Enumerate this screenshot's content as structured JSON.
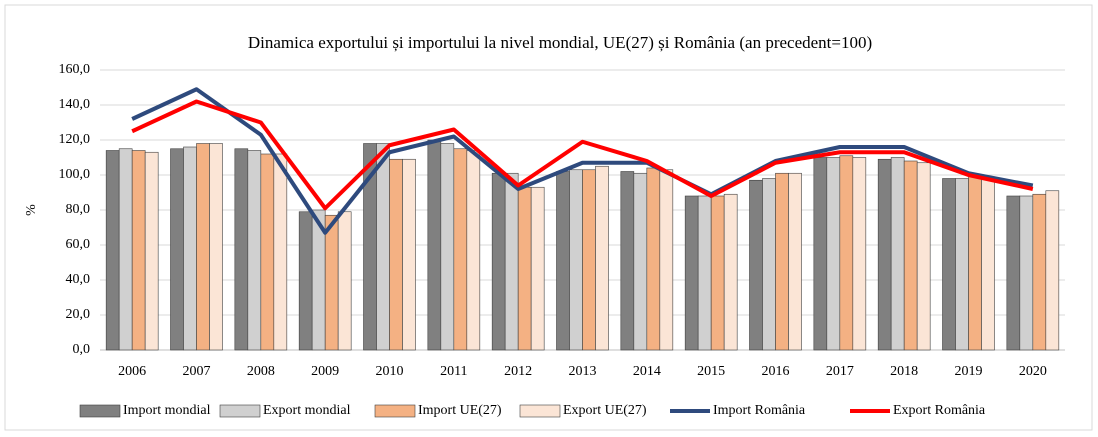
{
  "chart_data": {
    "type": "bar",
    "title": "Dinamica exportului și importului la nivel mondial, UE(27) și România (an precedent=100)",
    "y_label": "%",
    "categories": [
      "2006",
      "2007",
      "2008",
      "2009",
      "2010",
      "2011",
      "2012",
      "2013",
      "2014",
      "2015",
      "2016",
      "2017",
      "2018",
      "2019",
      "2020"
    ],
    "series": [
      {
        "name": "Import mondial",
        "kind": "bar",
        "color": "#808080",
        "values": [
          114,
          115,
          115,
          79,
          118,
          120,
          101,
          102,
          102,
          88,
          97,
          110,
          109,
          98,
          88
        ]
      },
      {
        "name": "Export mondial",
        "kind": "bar",
        "color": "#d0d0d0",
        "values": [
          115,
          116,
          114,
          80,
          118,
          118,
          101,
          103,
          101,
          88,
          98,
          110,
          110,
          98,
          88
        ]
      },
      {
        "name": "Import UE(27)",
        "kind": "bar",
        "color": "#f4b183",
        "values": [
          114,
          118,
          112,
          77,
          109,
          115,
          93,
          103,
          104,
          88,
          101,
          111,
          108,
          99,
          89
        ]
      },
      {
        "name": "Export UE(27)",
        "kind": "bar",
        "color": "#fbe5d6",
        "values": [
          113,
          118,
          112,
          79,
          109,
          114,
          93,
          105,
          103,
          89,
          101,
          110,
          107,
          99,
          91
        ]
      },
      {
        "name": "Import România",
        "kind": "line",
        "color": "#2e4a7d",
        "values": [
          132,
          149,
          123,
          67,
          113,
          122,
          92,
          107,
          107,
          89,
          108,
          116,
          116,
          101,
          94
        ]
      },
      {
        "name": "Export România",
        "kind": "line",
        "color": "#ff0000",
        "values": [
          125,
          142,
          130,
          81,
          117,
          126,
          94,
          119,
          108,
          88,
          107,
          113,
          113,
          100,
          92
        ]
      }
    ],
    "ylim": [
      0,
      160
    ],
    "yticks": [
      {
        "value": 0,
        "label": "0,0"
      },
      {
        "value": 20,
        "label": "20,0"
      },
      {
        "value": 40,
        "label": "40,0"
      },
      {
        "value": 60,
        "label": "60,0"
      },
      {
        "value": 80,
        "label": "80,0"
      },
      {
        "value": 100,
        "label": "100,0"
      },
      {
        "value": 120,
        "label": "120,0"
      },
      {
        "value": 140,
        "label": "140,0"
      },
      {
        "value": 160,
        "label": "160,0"
      }
    ],
    "grid": true,
    "legend": "bottom"
  }
}
